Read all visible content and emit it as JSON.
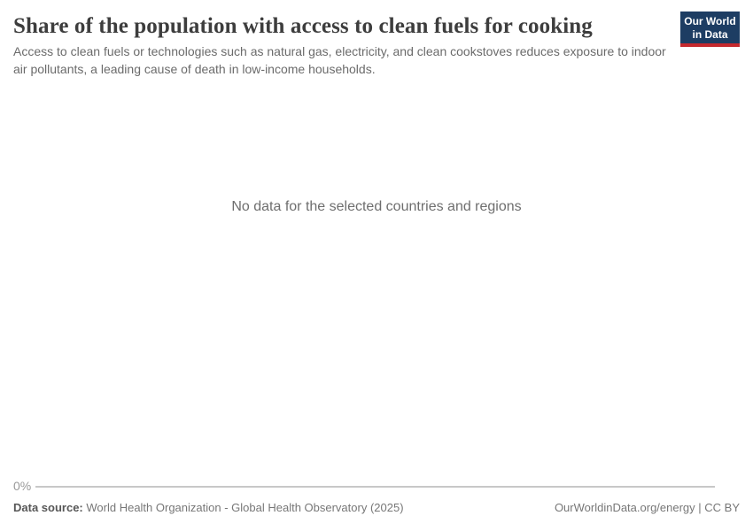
{
  "header": {
    "title": "Share of the population with access to clean fuels for cooking",
    "subtitle": "Access to clean fuels or technologies such as natural gas, electricity, and clean cookstoves reduces exposure to indoor air pollutants, a leading cause of death in low-income households.",
    "logo": {
      "line1": "Our World",
      "line2": "in Data",
      "bg_color": "#1d3d63",
      "accent_color": "#c5292e"
    }
  },
  "chart_data": {
    "type": "line",
    "title": "Share of the population with access to clean fuels for cooking",
    "series": [],
    "categories": [],
    "y_ticks": [
      "0%"
    ],
    "no_data_message": "No data for the selected countries and regions",
    "grid": false,
    "legend": "none",
    "axis_line_color": "#c8c8c8"
  },
  "footer": {
    "source_label": "Data source:",
    "source_value": "World Health Organization - Global Health Observatory (2025)",
    "license": "OurWorldinData.org/energy | CC BY"
  }
}
